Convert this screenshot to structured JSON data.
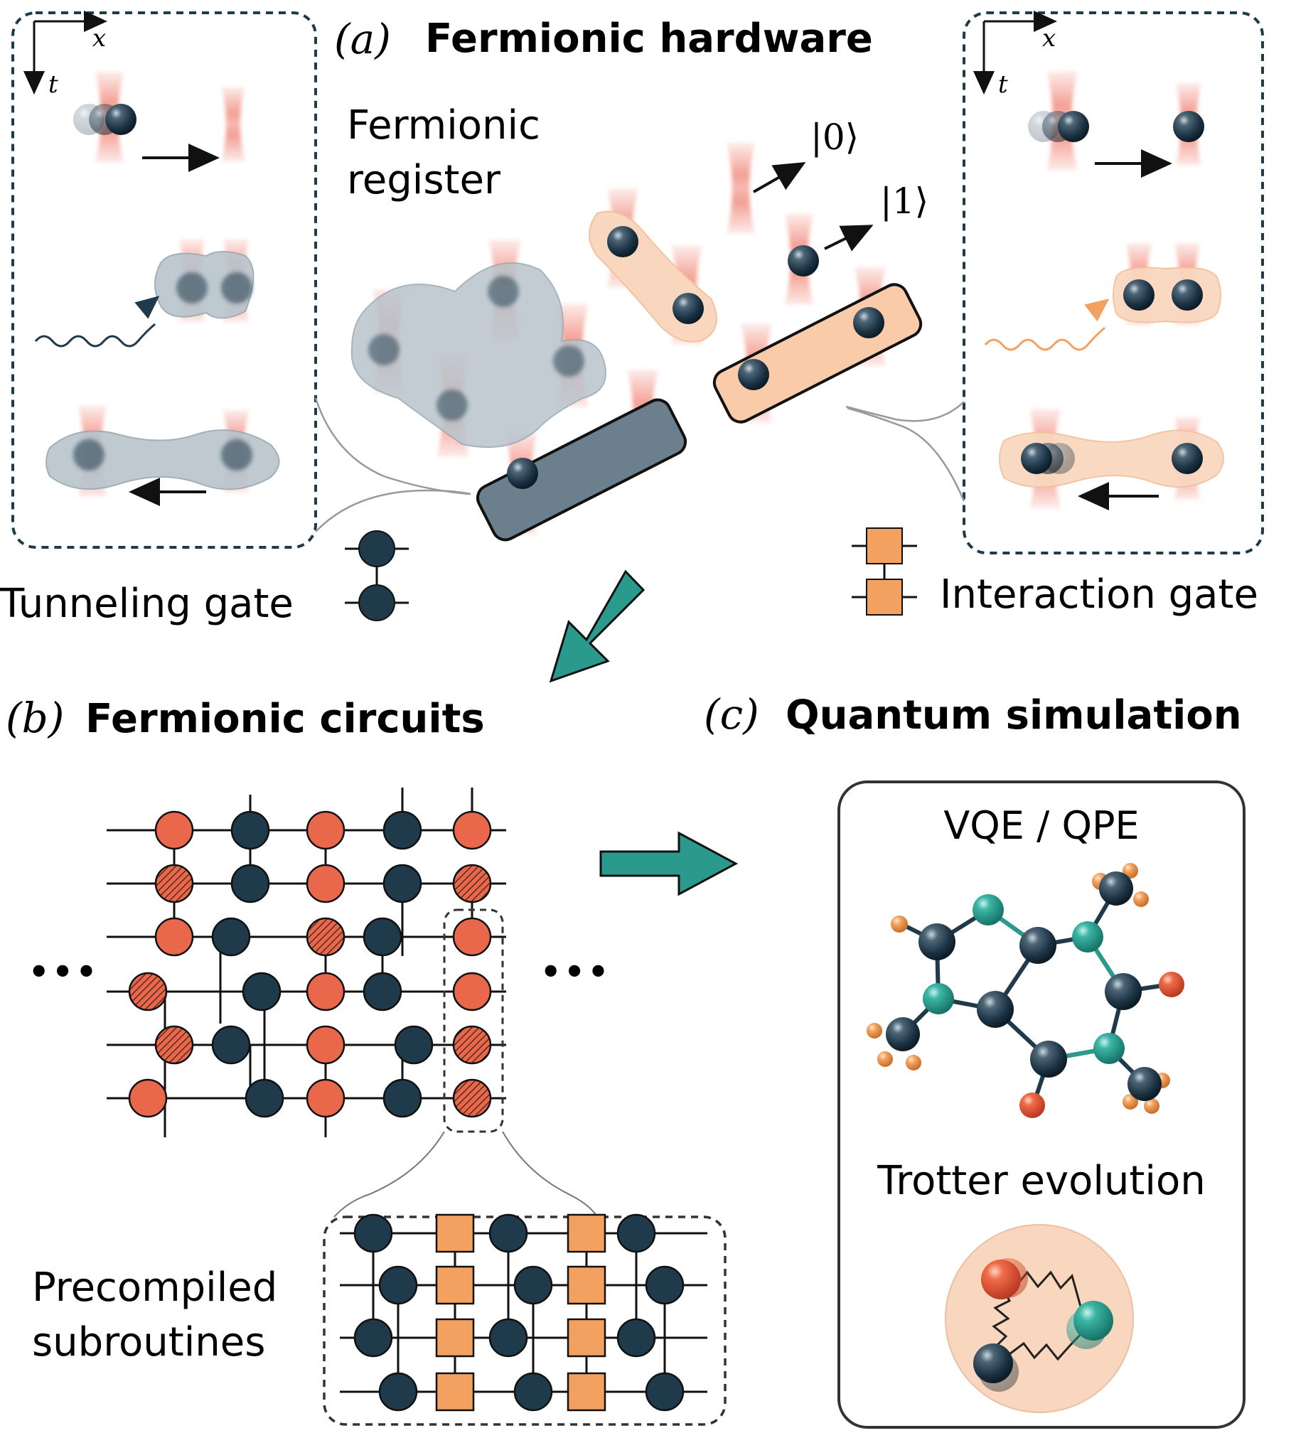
{
  "panel_a": {
    "letter": "(a)",
    "title": "Fermionic hardware",
    "register_label_line1": "Fermionic",
    "register_label_line2": "register",
    "ket0": "|0⟩",
    "ket1": "|1⟩",
    "axis_x": "x",
    "axis_t": "t",
    "tunneling_gate_label": "Tunneling gate",
    "interaction_gate_label": "Interaction gate"
  },
  "panel_b": {
    "letter": "(b)",
    "title": "Fermionic circuits",
    "ellipsis": "•••",
    "subroutines_line1": "Precompiled",
    "subroutines_line2": "subroutines"
  },
  "panel_c": {
    "letter": "(c)",
    "title": "Quantum simulation",
    "algo_label": "VQE / QPE",
    "trotter_label": "Trotter evolution"
  },
  "colors": {
    "dark_navy": "#1f3a4b",
    "orange_red": "#e9684c",
    "light_orange": "#f2a160",
    "peach": "#f9d7bf",
    "teal": "#2a9a8c",
    "gray_blob": "#b9c4cc",
    "tweezer_red": "#f08070"
  },
  "icons": [
    "arrow-right-icon",
    "teal-arrow-icon",
    "wavy-photon-icon",
    "atom-icon",
    "molecule-icon"
  ]
}
